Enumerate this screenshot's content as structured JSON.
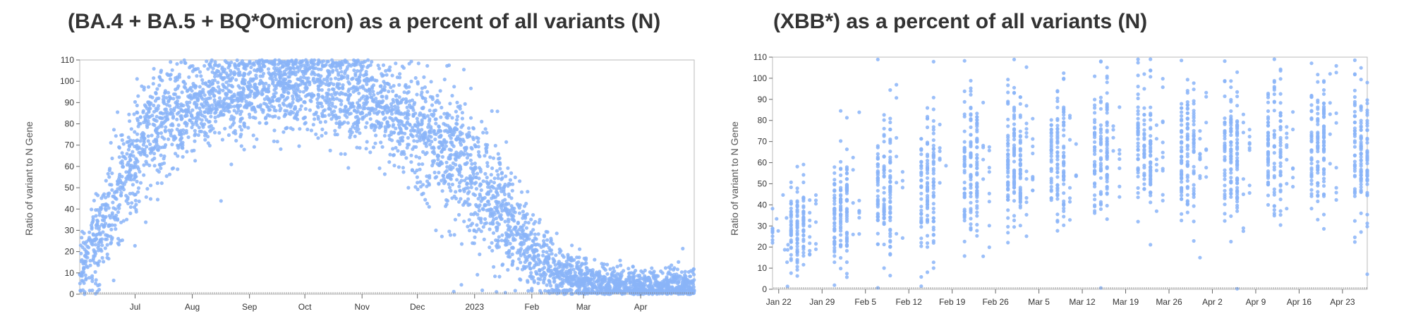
{
  "chart_data": [
    {
      "type": "scatter",
      "title": "(BA.4 + BA.5 + BQ*Omicron) as a percent of all variants (N)",
      "ylabel": "Ratio of variant to N Gene",
      "xlabel": "",
      "xlim": [
        "2022-06-01",
        "2023-04-30"
      ],
      "ylim": [
        0,
        110
      ],
      "yticks": [
        0,
        10,
        20,
        30,
        40,
        50,
        60,
        70,
        80,
        90,
        100,
        110
      ],
      "xticks": [
        {
          "date": "2022-07-01",
          "label": "Jul"
        },
        {
          "date": "2022-08-01",
          "label": "Aug"
        },
        {
          "date": "2022-09-01",
          "label": "Sep"
        },
        {
          "date": "2022-10-01",
          "label": "Oct"
        },
        {
          "date": "2022-11-01",
          "label": "Nov"
        },
        {
          "date": "2022-12-01",
          "label": "Dec"
        },
        {
          "date": "2023-01-01",
          "label": "2023"
        },
        {
          "date": "2023-02-01",
          "label": "Feb"
        },
        {
          "date": "2023-03-01",
          "label": "Mar"
        },
        {
          "date": "2023-04-01",
          "label": "Apr"
        }
      ],
      "trend": [
        {
          "x": "2022-06-03",
          "y": 12,
          "spread": 8
        },
        {
          "x": "2022-06-12",
          "y": 28,
          "spread": 12
        },
        {
          "x": "2022-06-22",
          "y": 48,
          "spread": 13
        },
        {
          "x": "2022-07-05",
          "y": 72,
          "spread": 13
        },
        {
          "x": "2022-07-20",
          "y": 85,
          "spread": 12
        },
        {
          "x": "2022-08-10",
          "y": 92,
          "spread": 10
        },
        {
          "x": "2022-09-10",
          "y": 97,
          "spread": 10
        },
        {
          "x": "2022-10-10",
          "y": 98,
          "spread": 10
        },
        {
          "x": "2022-11-01",
          "y": 92,
          "spread": 11
        },
        {
          "x": "2022-11-20",
          "y": 84,
          "spread": 12
        },
        {
          "x": "2022-12-10",
          "y": 72,
          "spread": 13
        },
        {
          "x": "2022-12-25",
          "y": 62,
          "spread": 14
        },
        {
          "x": "2023-01-08",
          "y": 48,
          "spread": 14
        },
        {
          "x": "2023-01-20",
          "y": 34,
          "spread": 12
        },
        {
          "x": "2023-02-01",
          "y": 20,
          "spread": 10
        },
        {
          "x": "2023-02-15",
          "y": 10,
          "spread": 7
        },
        {
          "x": "2023-03-01",
          "y": 6,
          "spread": 5
        },
        {
          "x": "2023-03-20",
          "y": 4,
          "spread": 4
        },
        {
          "x": "2023-04-10",
          "y": 3,
          "spread": 4
        },
        {
          "x": "2023-04-30",
          "y": 3,
          "spread": 4
        }
      ],
      "point_count": 4200,
      "color": "#8ab4f8"
    },
    {
      "type": "scatter",
      "title": "(XBB*) as a percent of all variants (N)",
      "ylabel": "Ratio of variant to N Gene",
      "xlabel": "",
      "xlim": [
        "2023-01-21",
        "2023-04-27"
      ],
      "ylim": [
        0,
        110
      ],
      "yticks": [
        0,
        10,
        20,
        30,
        40,
        50,
        60,
        70,
        80,
        90,
        100,
        110
      ],
      "xticks": [
        {
          "date": "2023-01-22",
          "label": "Jan 22"
        },
        {
          "date": "2023-01-29",
          "label": "Jan 29"
        },
        {
          "date": "2023-02-05",
          "label": "Feb 5"
        },
        {
          "date": "2023-02-12",
          "label": "Feb 12"
        },
        {
          "date": "2023-02-19",
          "label": "Feb 19"
        },
        {
          "date": "2023-02-26",
          "label": "Feb 26"
        },
        {
          "date": "2023-03-05",
          "label": "Mar 5"
        },
        {
          "date": "2023-03-12",
          "label": "Mar 12"
        },
        {
          "date": "2023-03-19",
          "label": "Mar 19"
        },
        {
          "date": "2023-03-26",
          "label": "Mar 26"
        },
        {
          "date": "2023-04-02",
          "label": "Apr 2"
        },
        {
          "date": "2023-04-09",
          "label": "Apr 9"
        },
        {
          "date": "2023-04-16",
          "label": "Apr 16"
        },
        {
          "date": "2023-04-23",
          "label": "Apr 23"
        }
      ],
      "trend": [
        {
          "x": "2023-01-21",
          "y": 28,
          "spread": 10
        },
        {
          "x": "2023-01-29",
          "y": 33,
          "spread": 10
        },
        {
          "x": "2023-02-05",
          "y": 45,
          "spread": 16
        },
        {
          "x": "2023-02-12",
          "y": 50,
          "spread": 17
        },
        {
          "x": "2023-02-19",
          "y": 55,
          "spread": 17
        },
        {
          "x": "2023-02-26",
          "y": 60,
          "spread": 17
        },
        {
          "x": "2023-03-05",
          "y": 63,
          "spread": 16
        },
        {
          "x": "2023-03-12",
          "y": 65,
          "spread": 16
        },
        {
          "x": "2023-03-19",
          "y": 66,
          "spread": 16
        },
        {
          "x": "2023-03-26",
          "y": 66,
          "spread": 16
        },
        {
          "x": "2023-04-02",
          "y": 66,
          "spread": 16
        },
        {
          "x": "2023-04-09",
          "y": 66,
          "spread": 16
        },
        {
          "x": "2023-04-16",
          "y": 68,
          "spread": 16
        },
        {
          "x": "2023-04-23",
          "y": 66,
          "spread": 16
        },
        {
          "x": "2023-04-27",
          "y": 65,
          "spread": 16
        }
      ],
      "point_count": 2100,
      "color": "#8ab4f8"
    }
  ]
}
